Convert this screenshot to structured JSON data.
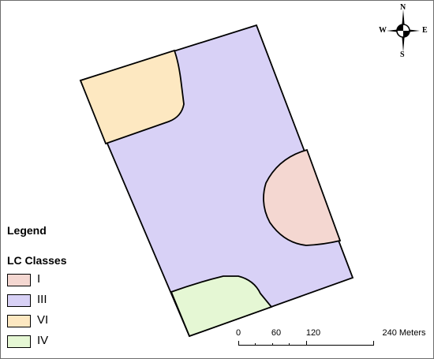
{
  "legend": {
    "title": "Legend",
    "subtitle": "LC Classes",
    "items": [
      {
        "label": "I",
        "color": "#f4d7d1"
      },
      {
        "label": "III",
        "color": "#d8d1f6"
      },
      {
        "label": "VI",
        "color": "#fde8c1"
      },
      {
        "label": "IV",
        "color": "#e5f7d4"
      }
    ]
  },
  "compass": {
    "icon": "north-arrow-icon",
    "north": "N",
    "south": "S",
    "east": "E",
    "west": "W"
  },
  "scalebar": {
    "labels": [
      "0",
      "60",
      "120",
      "240 Meters"
    ]
  },
  "colors": {
    "class_I": "#f4d7d1",
    "class_III": "#d8d1f6",
    "class_VI": "#fde8c1",
    "class_IV": "#e5f7d4",
    "boundary": "#000000"
  }
}
